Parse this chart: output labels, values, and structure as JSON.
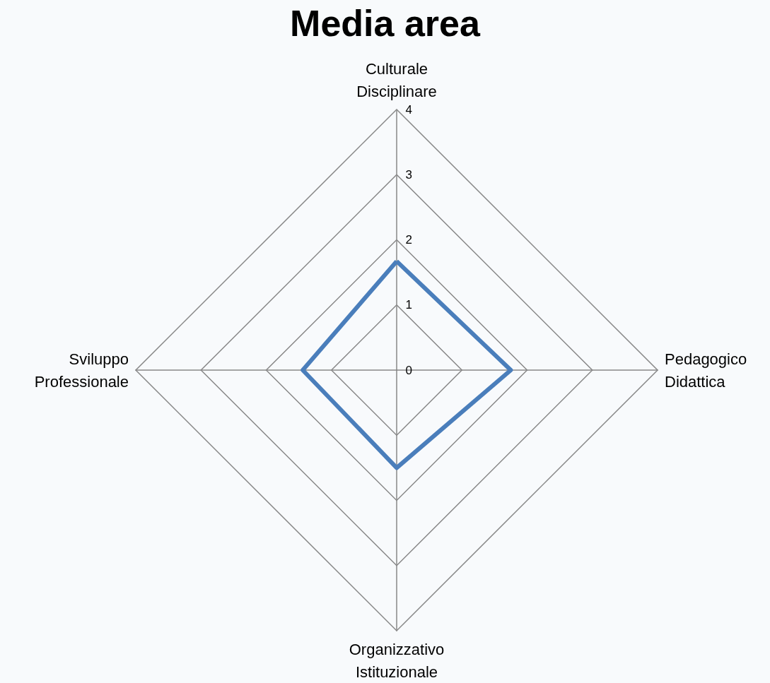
{
  "chart_data": {
    "type": "radar",
    "title": "Media area",
    "categories": [
      "Culturale Disciplinare",
      "Pedagogico Didattica",
      "Organizzativo Istituzionale",
      "Sviluppo Professionale"
    ],
    "series": [
      {
        "color": "#4a7ebb",
        "values": [
          1.67,
          1.75,
          1.5,
          1.44
        ]
      }
    ],
    "ylim": [
      0,
      4
    ],
    "yticks": [
      0,
      1,
      2,
      3,
      4
    ],
    "grid": true,
    "marker": "none",
    "line_style": "solid"
  }
}
